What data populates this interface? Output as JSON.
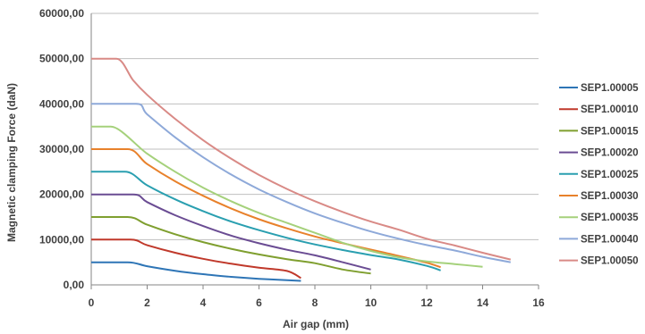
{
  "chart_data": {
    "type": "line",
    "title": "",
    "xlabel": "Air gap (mm)",
    "ylabel": "Magnetic clamping Force (daN)",
    "xlim": [
      0,
      16
    ],
    "ylim": [
      0,
      60000
    ],
    "x_ticks": [
      "0",
      "2",
      "4",
      "6",
      "8",
      "10",
      "12",
      "14",
      "16"
    ],
    "y_ticks": [
      "0,00",
      "10000,00",
      "20000,00",
      "30000,00",
      "40000,00",
      "50000,00",
      "60000,00"
    ],
    "grid": "horizontal",
    "legend_position": "right",
    "series": [
      {
        "name": "SEP1.00005",
        "color": "#2E75B6",
        "x": [
          0,
          1.3,
          2,
          3,
          4,
          5,
          6,
          7,
          7.5
        ],
        "y": [
          5000,
          5000,
          4130,
          3120,
          2360,
          1780,
          1350,
          1020,
          880
        ]
      },
      {
        "name": "SEP1.00010",
        "color": "#C0392B",
        "x": [
          0,
          1.4,
          2,
          3,
          4,
          5,
          6,
          7,
          7.5
        ],
        "y": [
          10000,
          10000,
          8760,
          7100,
          5760,
          4670,
          3790,
          3080,
          1500
        ]
      },
      {
        "name": "SEP1.00015",
        "color": "#7F9F2F",
        "x": [
          0,
          1.3,
          2,
          3,
          4,
          5,
          6,
          7,
          8,
          9,
          10
        ],
        "y": [
          15000,
          15000,
          13300,
          11200,
          9450,
          7980,
          6730,
          5680,
          4790,
          3400,
          2500
        ]
      },
      {
        "name": "SEP1.00020",
        "color": "#6A4C93",
        "x": [
          0,
          1.5,
          2,
          3,
          4,
          5,
          6,
          7,
          8,
          9,
          10
        ],
        "y": [
          20000,
          20000,
          18300,
          15400,
          13000,
          10900,
          9200,
          7760,
          6540,
          5000,
          3400
        ]
      },
      {
        "name": "SEP1.00025",
        "color": "#2A9FB0",
        "x": [
          0,
          1.2,
          2,
          3,
          4,
          5,
          6,
          7,
          8,
          9,
          10,
          11,
          12,
          12.5
        ],
        "y": [
          25000,
          25000,
          22000,
          18900,
          16300,
          14000,
          12100,
          10400,
          8950,
          7700,
          6600,
          5600,
          4200,
          3200
        ]
      },
      {
        "name": "SEP1.00030",
        "color": "#E8812B",
        "x": [
          0,
          1.3,
          2,
          3,
          4,
          5,
          6,
          7,
          8,
          9,
          10,
          11,
          12,
          12.5
        ],
        "y": [
          30000,
          30000,
          26700,
          22900,
          19700,
          16900,
          14500,
          12500,
          10700,
          9200,
          7800,
          6400,
          4900,
          3900
        ]
      },
      {
        "name": "SEP1.00035",
        "color": "#A5D17B",
        "x": [
          0,
          0.7,
          2,
          3,
          4,
          5,
          6,
          7,
          8,
          9,
          10,
          11,
          12,
          13,
          14
        ],
        "y": [
          35000,
          35000,
          29000,
          25000,
          21500,
          18500,
          15900,
          13700,
          11500,
          9300,
          7500,
          6100,
          5200,
          4600,
          4000
        ]
      },
      {
        "name": "SEP1.00040",
        "color": "#8EA9D9",
        "x": [
          0,
          1.6,
          2,
          3,
          4,
          5,
          6,
          7,
          8,
          9,
          10,
          11,
          12,
          13,
          14,
          15
        ],
        "y": [
          40000,
          40000,
          37700,
          32600,
          28200,
          24400,
          21100,
          18300,
          15800,
          13700,
          11800,
          10200,
          8800,
          7600,
          6200,
          5000
        ]
      },
      {
        "name": "SEP1.00050",
        "color": "#D98A86",
        "x": [
          0,
          0.9,
          1.5,
          2,
          3,
          4,
          5,
          6,
          7,
          8,
          9,
          10,
          11,
          12,
          13,
          14,
          15
        ],
        "y": [
          50000,
          50000,
          45200,
          42000,
          36700,
          32000,
          27900,
          24300,
          21200,
          18500,
          16100,
          14000,
          12200,
          10200,
          8700,
          7100,
          5600
        ]
      }
    ]
  }
}
